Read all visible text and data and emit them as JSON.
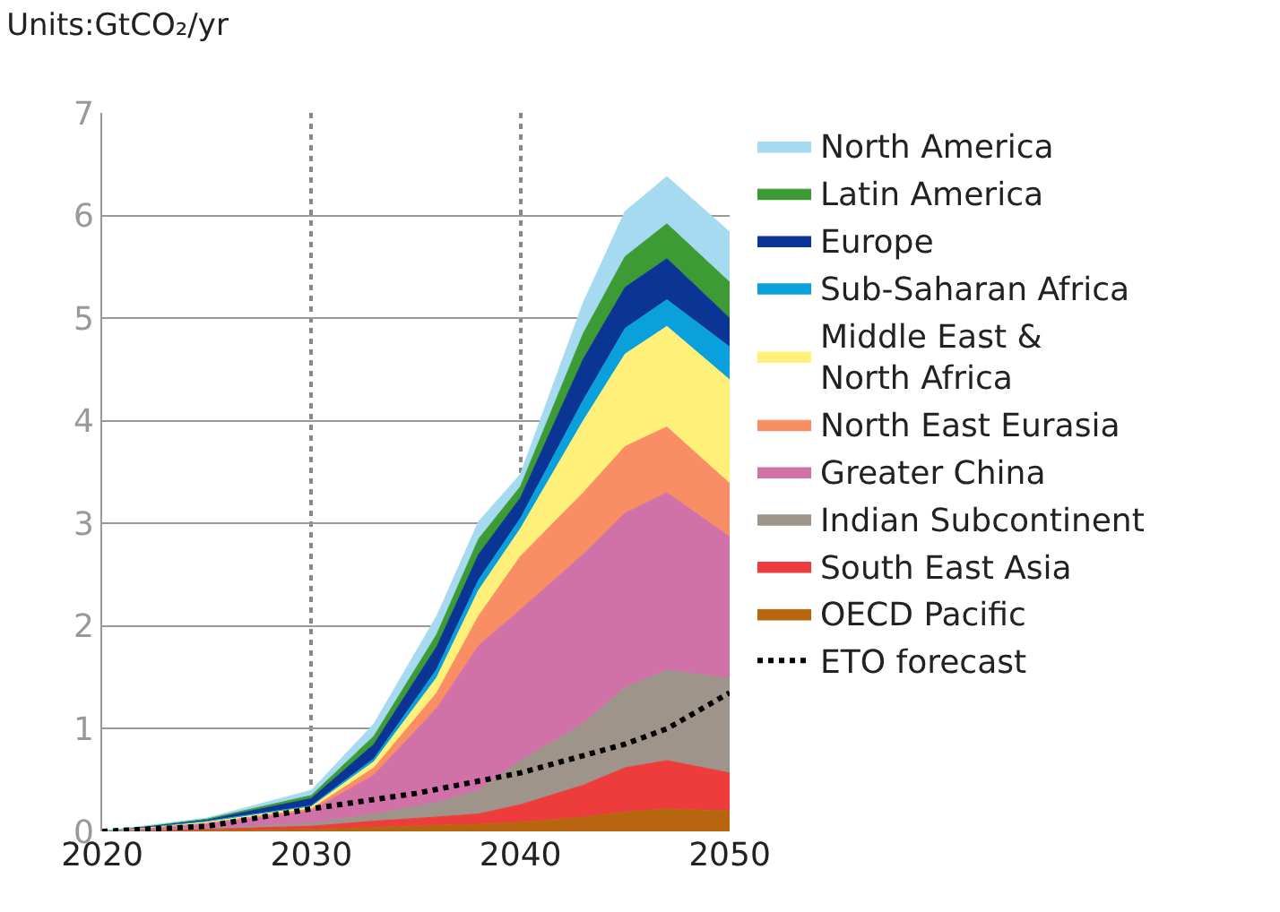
{
  "chart_data": {
    "type": "area",
    "title": "Units:GtCO₂/yr",
    "stacked": true,
    "x": [
      2020,
      2025,
      2030,
      2033,
      2036,
      2038,
      2040,
      2043,
      2045,
      2047,
      2050
    ],
    "series": [
      {
        "name": "OECD Pacific",
        "color": "#b7650e",
        "values": [
          0,
          0.01,
          0.02,
          0.04,
          0.06,
          0.07,
          0.09,
          0.14,
          0.19,
          0.22,
          0.2
        ]
      },
      {
        "name": "South East Asia",
        "color": "#ee3b3c",
        "values": [
          0,
          0.01,
          0.03,
          0.06,
          0.08,
          0.1,
          0.17,
          0.31,
          0.43,
          0.47,
          0.37
        ]
      },
      {
        "name": "Indian Subcontinent",
        "color": "#9e948a",
        "values": [
          0,
          0.01,
          0.03,
          0.07,
          0.14,
          0.23,
          0.43,
          0.6,
          0.78,
          0.88,
          0.92
        ]
      },
      {
        "name": "Greater China",
        "color": "#d071a8",
        "values": [
          0,
          0.04,
          0.12,
          0.38,
          0.92,
          1.41,
          1.47,
          1.65,
          1.7,
          1.73,
          1.38
        ]
      },
      {
        "name": "North East Eurasia",
        "color": "#f98e64",
        "values": [
          0,
          0.01,
          0.02,
          0.07,
          0.15,
          0.29,
          0.52,
          0.6,
          0.65,
          0.64,
          0.52
        ]
      },
      {
        "name": "Middle East & North Africa",
        "color": "#fff07a",
        "values": [
          0,
          0.01,
          0.02,
          0.06,
          0.15,
          0.25,
          0.27,
          0.7,
          0.9,
          0.98,
          1.01
        ]
      },
      {
        "name": "Sub-Saharan Africa",
        "color": "#0aa0dc",
        "values": [
          0,
          0.01,
          0.01,
          0.03,
          0.08,
          0.1,
          0.1,
          0.2,
          0.25,
          0.26,
          0.32
        ]
      },
      {
        "name": "Europe",
        "color": "#0a3595",
        "values": [
          0,
          0.01,
          0.07,
          0.14,
          0.22,
          0.25,
          0.2,
          0.4,
          0.4,
          0.4,
          0.28
        ]
      },
      {
        "name": "Latin America",
        "color": "#3d9b35",
        "values": [
          0,
          0.01,
          0.03,
          0.08,
          0.12,
          0.15,
          0.11,
          0.25,
          0.3,
          0.34,
          0.35
        ]
      },
      {
        "name": "North America",
        "color": "#a6daf0",
        "values": [
          0,
          0.01,
          0.05,
          0.12,
          0.18,
          0.17,
          0.12,
          0.3,
          0.44,
          0.46,
          0.49
        ]
      },
      {
        "name": "ETO forecast",
        "type": "line",
        "line_style": "dotted",
        "color": "#000000",
        "x": [
          2020,
          2025,
          2030,
          2035,
          2040,
          2045,
          2047,
          2050
        ],
        "values": [
          0,
          0.05,
          0.22,
          0.37,
          0.57,
          0.85,
          1.0,
          1.35
        ]
      }
    ],
    "xlim": [
      2020,
      2050
    ],
    "xticks": [
      2020,
      2030,
      2040,
      2050
    ],
    "ylim": [
      0,
      7
    ],
    "yticks": [
      0,
      1,
      2,
      3,
      4,
      5,
      6,
      7
    ],
    "grid": true,
    "legend": "right"
  }
}
